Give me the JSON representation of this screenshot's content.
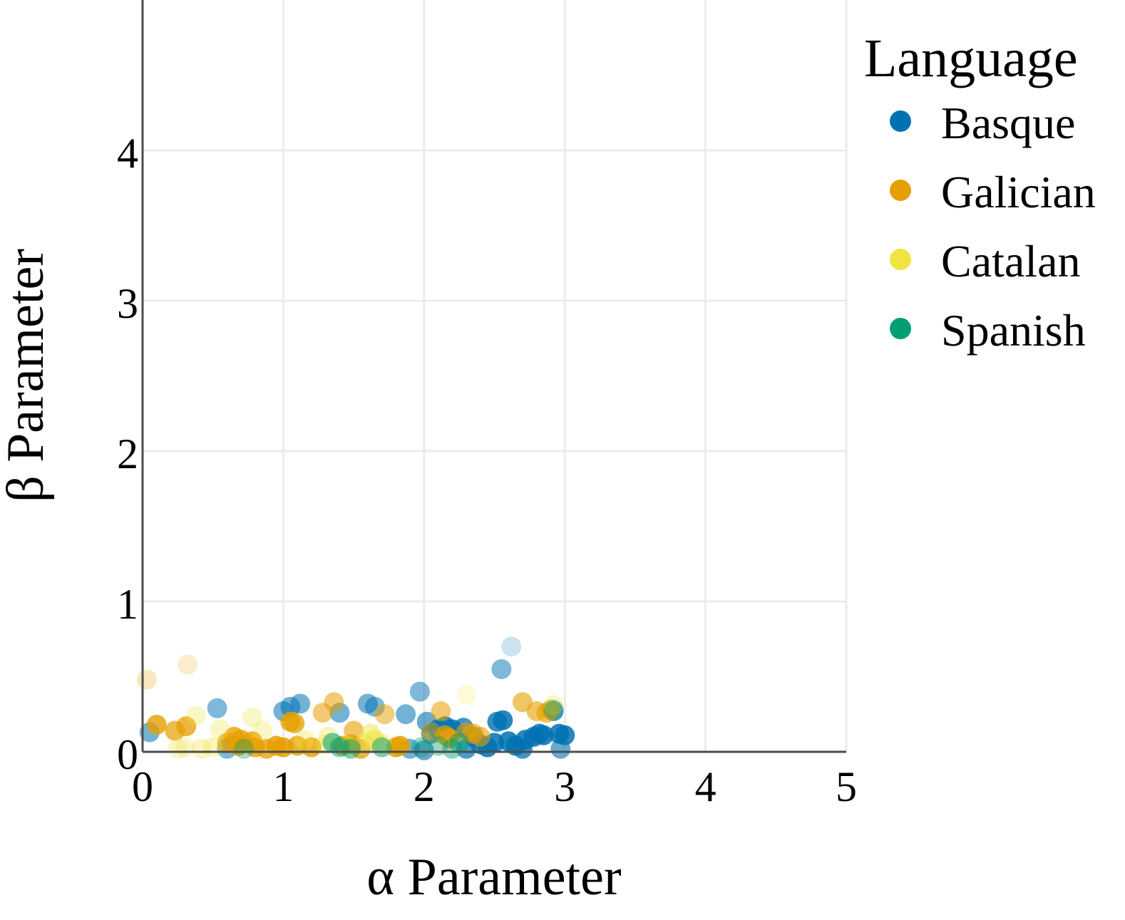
{
  "chart_data": {
    "type": "scatter",
    "xlabel": "α Parameter",
    "ylabel": "β Parameter",
    "xlim": [
      0,
      5
    ],
    "ylim": [
      0,
      5
    ],
    "x_ticks": [
      "0",
      "1",
      "2",
      "3",
      "4",
      "5"
    ],
    "y_ticks": [
      "0",
      "1",
      "2",
      "3",
      "4"
    ],
    "grid": true,
    "legend": {
      "title": "Language",
      "position": "top-right"
    },
    "series": [
      {
        "name": "Basque",
        "color": "#0072B2",
        "points": [
          [
            0.05,
            0.13,
            0.55
          ],
          [
            0.53,
            0.29,
            0.5
          ],
          [
            1.0,
            0.27,
            0.55
          ],
          [
            1.05,
            0.3,
            0.55
          ],
          [
            1.12,
            0.32,
            0.55
          ],
          [
            1.4,
            0.26,
            0.55
          ],
          [
            1.6,
            0.32,
            0.55
          ],
          [
            1.65,
            0.3,
            0.5
          ],
          [
            1.87,
            0.25,
            0.55
          ],
          [
            1.97,
            0.4,
            0.5
          ],
          [
            2.02,
            0.2,
            0.6
          ],
          [
            2.1,
            0.15,
            0.75
          ],
          [
            2.15,
            0.17,
            0.85
          ],
          [
            2.2,
            0.15,
            0.8
          ],
          [
            2.28,
            0.16,
            0.75
          ],
          [
            2.4,
            0.05,
            0.8
          ],
          [
            2.45,
            0.03,
            0.85
          ],
          [
            2.5,
            0.06,
            0.85
          ],
          [
            2.52,
            0.2,
            0.8
          ],
          [
            2.56,
            0.21,
            0.85
          ],
          [
            2.55,
            0.55,
            0.5
          ],
          [
            2.62,
            0.7,
            0.2
          ],
          [
            2.6,
            0.07,
            0.85
          ],
          [
            2.65,
            0.04,
            0.85
          ],
          [
            2.72,
            0.08,
            0.85
          ],
          [
            2.78,
            0.1,
            0.85
          ],
          [
            2.82,
            0.12,
            0.85
          ],
          [
            2.85,
            0.11,
            0.85
          ],
          [
            2.92,
            0.27,
            0.7
          ],
          [
            2.96,
            0.12,
            0.85
          ],
          [
            3.0,
            0.11,
            0.85
          ],
          [
            2.97,
            0.02,
            0.6
          ],
          [
            2.3,
            0.02,
            0.7
          ],
          [
            2.0,
            0.01,
            0.6
          ],
          [
            1.9,
            0.02,
            0.55
          ],
          [
            2.7,
            0.02,
            0.75
          ],
          [
            2.35,
            0.1,
            0.75
          ],
          [
            2.05,
            0.12,
            0.65
          ],
          [
            0.6,
            0.02,
            0.5
          ]
        ]
      },
      {
        "name": "Galician",
        "color": "#E69F00",
        "points": [
          [
            0.03,
            0.48,
            0.25
          ],
          [
            0.1,
            0.18,
            0.8
          ],
          [
            0.23,
            0.14,
            0.7
          ],
          [
            0.31,
            0.17,
            0.75
          ],
          [
            0.32,
            0.58,
            0.2
          ],
          [
            0.65,
            0.1,
            0.8
          ],
          [
            0.7,
            0.08,
            0.8
          ],
          [
            0.68,
            0.04,
            0.85
          ],
          [
            0.78,
            0.07,
            0.8
          ],
          [
            0.8,
            0.03,
            0.8
          ],
          [
            0.88,
            0.02,
            0.75
          ],
          [
            0.95,
            0.04,
            0.85
          ],
          [
            1.0,
            0.03,
            0.85
          ],
          [
            1.05,
            0.2,
            0.8
          ],
          [
            1.08,
            0.19,
            0.75
          ],
          [
            1.1,
            0.04,
            0.8
          ],
          [
            1.2,
            0.03,
            0.8
          ],
          [
            1.28,
            0.26,
            0.55
          ],
          [
            1.36,
            0.33,
            0.55
          ],
          [
            1.42,
            0.04,
            0.8
          ],
          [
            1.48,
            0.05,
            0.8
          ],
          [
            1.5,
            0.14,
            0.6
          ],
          [
            1.55,
            0.02,
            0.75
          ],
          [
            1.72,
            0.25,
            0.5
          ],
          [
            1.8,
            0.03,
            0.85
          ],
          [
            1.83,
            0.04,
            0.85
          ],
          [
            2.05,
            0.13,
            0.5
          ],
          [
            2.12,
            0.27,
            0.55
          ],
          [
            2.15,
            0.11,
            0.75
          ],
          [
            2.18,
            0.09,
            0.85
          ],
          [
            2.3,
            0.13,
            0.6
          ],
          [
            2.35,
            0.12,
            0.65
          ],
          [
            2.4,
            0.1,
            0.6
          ],
          [
            2.7,
            0.33,
            0.6
          ],
          [
            2.8,
            0.27,
            0.6
          ],
          [
            2.87,
            0.26,
            0.65
          ],
          [
            2.9,
            0.28,
            0.6
          ],
          [
            0.6,
            0.06,
            0.75
          ]
        ]
      },
      {
        "name": "Catalan",
        "color": "#F0E442",
        "points": [
          [
            0.3,
            0.03,
            0.3
          ],
          [
            0.38,
            0.24,
            0.3
          ],
          [
            0.42,
            0.02,
            0.35
          ],
          [
            0.5,
            0.03,
            0.35
          ],
          [
            0.55,
            0.15,
            0.3
          ],
          [
            0.78,
            0.23,
            0.3
          ],
          [
            0.85,
            0.14,
            0.3
          ],
          [
            1.15,
            0.08,
            0.35
          ],
          [
            1.3,
            0.05,
            0.4
          ],
          [
            1.32,
            0.1,
            0.35
          ],
          [
            1.58,
            0.06,
            0.4
          ],
          [
            1.62,
            0.12,
            0.5
          ],
          [
            1.65,
            0.08,
            0.55
          ],
          [
            1.7,
            0.05,
            0.5
          ],
          [
            2.3,
            0.38,
            0.2
          ],
          [
            2.92,
            0.31,
            0.3
          ],
          [
            1.45,
            0.04,
            0.4
          ],
          [
            0.25,
            0.02,
            0.3
          ]
        ]
      },
      {
        "name": "Spanish",
        "color": "#009E73",
        "points": [
          [
            1.35,
            0.06,
            0.55
          ],
          [
            1.4,
            0.03,
            0.5
          ],
          [
            1.7,
            0.03,
            0.5
          ],
          [
            1.98,
            0.03,
            0.4
          ],
          [
            2.2,
            0.02,
            0.45
          ],
          [
            2.25,
            0.06,
            0.5
          ],
          [
            2.92,
            0.28,
            0.35
          ],
          [
            0.72,
            0.02,
            0.35
          ],
          [
            1.48,
            0.02,
            0.5
          ],
          [
            2.1,
            0.04,
            0.4
          ]
        ]
      }
    ]
  }
}
